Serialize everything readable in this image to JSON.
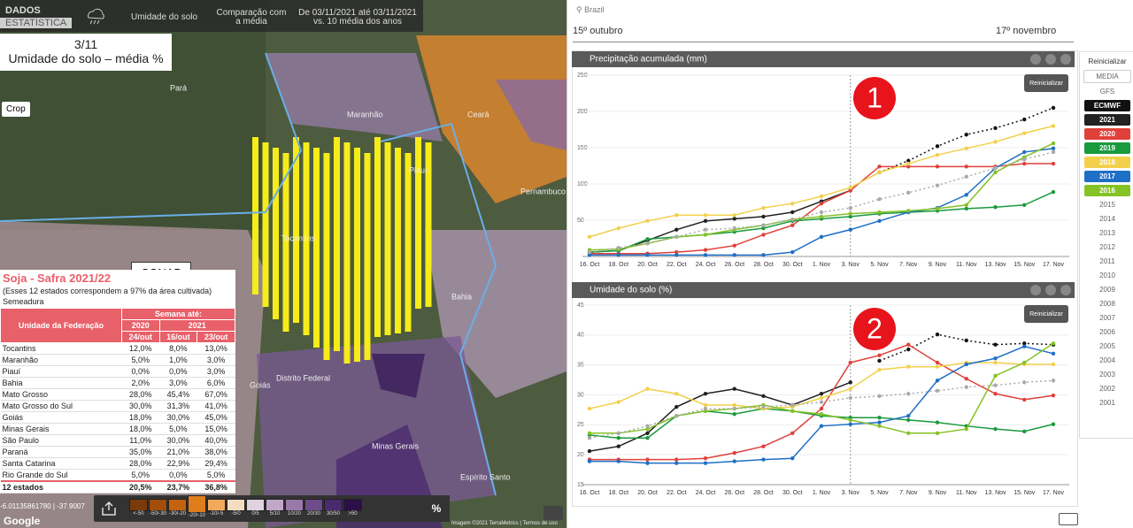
{
  "header": {
    "brand_top": "DADOS",
    "brand_bottom": "ESTATÍSTICA",
    "layer": "Umidade do solo",
    "mode": "Comparação com a média",
    "period": "De 03/11/2021 até 03/11/2021 vs. 10 média dos anos"
  },
  "map": {
    "date": "3/11",
    "subtitle": "Umidade do solo – média %",
    "crop": "Crop",
    "source": "CONAB",
    "labels": [
      "Pará",
      "Maranhão",
      "Ceará",
      "Piauí",
      "Pernambuco",
      "Tocantins",
      "Bahia",
      "Goiás",
      "Distrito Federal",
      "Minas Gerais",
      "Espírito Santo"
    ],
    "coords": "-6.01135861780 | -37.9007",
    "google": "Google",
    "attribution": "Imagem ©2021 TerraMetrics | Termos de uso"
  },
  "legend": {
    "bins": [
      {
        "label": "<-50",
        "color": "#7a3a0a"
      },
      {
        "label": "-50/-30",
        "color": "#a24d0a"
      },
      {
        "label": "-30/-20",
        "color": "#c4620e"
      },
      {
        "label": "-20/-10",
        "color": "#df7d1c"
      },
      {
        "label": "-10/-5",
        "color": "#f2a95c"
      },
      {
        "label": "-5/0",
        "color": "#f3dcc0"
      },
      {
        "label": "0/5",
        "color": "#e0d2de"
      },
      {
        "label": "5/10",
        "color": "#c2a8c8"
      },
      {
        "label": "10/20",
        "color": "#9a78aa"
      },
      {
        "label": "20/30",
        "color": "#6e4b8a"
      },
      {
        "label": "30/50",
        "color": "#4a2a6e"
      },
      {
        "label": ">50",
        "color": "#2b0f48"
      }
    ],
    "selected": 3,
    "unit": "%"
  },
  "table": {
    "title": "Soja - Safra 2021/22",
    "note": "(Esses 12 estados correspondem a 97% da área cultivada)",
    "section": "Semeadura",
    "head": {
      "state": "Unidade da Federação",
      "week": "Semana até:",
      "y2020": "2020",
      "y2021": "2021",
      "d1": "24/out",
      "d2": "16/out",
      "d3": "23/out"
    },
    "rows": [
      [
        "Tocantins",
        "12,0%",
        "8,0%",
        "13,0%"
      ],
      [
        "Maranhão",
        "5,0%",
        "1,0%",
        "3,0%"
      ],
      [
        "Piauí",
        "0,0%",
        "0,0%",
        "3,0%"
      ],
      [
        "Bahia",
        "2,0%",
        "3,0%",
        "6,0%"
      ],
      [
        "Mato Grosso",
        "28,0%",
        "45,4%",
        "67,0%"
      ],
      [
        "Mato Grosso do Sul",
        "30,0%",
        "31,3%",
        "41,0%"
      ],
      [
        "Goiás",
        "18,0%",
        "30,0%",
        "45,0%"
      ],
      [
        "Minas Gerais",
        "18,0%",
        "5,0%",
        "15,0%"
      ],
      [
        "São Paulo",
        "11,0%",
        "30,0%",
        "40,0%"
      ],
      [
        "Paraná",
        "35,0%",
        "21,0%",
        "38,0%"
      ],
      [
        "Santa Catarina",
        "28,0%",
        "22,9%",
        "29,4%"
      ],
      [
        "Rio Grande do Sul",
        "5,0%",
        "0,0%",
        "5,0%"
      ]
    ],
    "total": [
      "12 estados",
      "20,5%",
      "23,7%",
      "36,8%"
    ]
  },
  "location": "Brazil",
  "range": {
    "start": "15º outubro",
    "end": "17º novembro"
  },
  "sidebar": {
    "reset": "Reinicializar",
    "gfs": "GFS",
    "years": [
      "2015",
      "2014",
      "2013",
      "2012",
      "2011",
      "2010",
      "2009",
      "2008",
      "2007",
      "2006",
      "2005",
      "2004",
      "2003",
      "2002",
      "2001"
    ]
  },
  "chart_data": [
    {
      "type": "line",
      "title": "Precipitação acumulada (mm)",
      "button": "Reinicializar",
      "annotation": "1",
      "categories": [
        "16. Oct",
        "18. Oct",
        "20. Oct",
        "22. Oct",
        "24. Oct",
        "26. Oct",
        "28. Oct",
        "30. Oct",
        "1. Nov",
        "3. Nov",
        "5. Nov",
        "7. Nov",
        "9. Nov",
        "11. Nov",
        "13. Nov",
        "15. Nov",
        "17. Nov"
      ],
      "ylim": [
        0,
        250
      ],
      "yticks": [
        50,
        100,
        150,
        200,
        250
      ],
      "grid": true,
      "series": [
        {
          "name": "ECMWF",
          "color": "#111111",
          "style": "dotted",
          "values": [
            null,
            null,
            null,
            null,
            null,
            null,
            null,
            null,
            null,
            null,
            116,
            132,
            152,
            168,
            177,
            189,
            205
          ]
        },
        {
          "name": "2021",
          "color": "#222222",
          "values": [
            6,
            8,
            22,
            37,
            49,
            52,
            55,
            61,
            76,
            91,
            null,
            null,
            null,
            null,
            null,
            null,
            null
          ]
        },
        {
          "name": "2020",
          "color": "#e0413a",
          "values": [
            4,
            4,
            4,
            6,
            9,
            15,
            30,
            43,
            73,
            91,
            124,
            124,
            124,
            124,
            124,
            128,
            128
          ]
        },
        {
          "name": "2019",
          "color": "#1a9a3e",
          "values": [
            6,
            8,
            24,
            27,
            30,
            34,
            39,
            49,
            52,
            55,
            59,
            61,
            63,
            66,
            68,
            71,
            89
          ]
        },
        {
          "name": "2018",
          "color": "#f2d04b",
          "values": [
            27,
            39,
            49,
            57,
            57,
            57,
            67,
            73,
            83,
            95,
            116,
            128,
            140,
            149,
            158,
            170,
            180
          ]
        },
        {
          "name": "2017",
          "color": "#1f6fc6",
          "values": [
            2,
            2,
            2,
            2,
            2,
            2,
            2,
            6,
            27,
            37,
            49,
            61,
            67,
            85,
            122,
            144,
            149
          ]
        },
        {
          "name": "2016",
          "color": "#84c225",
          "values": [
            9,
            10,
            18,
            27,
            30,
            37,
            43,
            51,
            55,
            59,
            61,
            63,
            66,
            71,
            116,
            137,
            156
          ]
        },
        {
          "name": "MEDIA",
          "color": "#aaaaaa",
          "style": "dotted",
          "values": [
            6,
            12,
            18,
            27,
            37,
            39,
            43,
            51,
            61,
            67,
            79,
            88,
            98,
            110,
            122,
            134,
            144
          ]
        }
      ]
    },
    {
      "type": "line",
      "title": "Umidade do solo (%)",
      "button": "Reinicializar",
      "annotation": "2",
      "categories": [
        "16. Oct",
        "18. Oct",
        "20. Oct",
        "22. Oct",
        "24. Oct",
        "26. Oct",
        "28. Oct",
        "30. Oct",
        "1. Nov",
        "3. Nov",
        "5. Nov",
        "7. Nov",
        "9. Nov",
        "11. Nov",
        "13. Nov",
        "15. Nov",
        "17. Nov"
      ],
      "ylim": [
        15,
        45
      ],
      "yticks": [
        15,
        20,
        25,
        30,
        35,
        40,
        45
      ],
      "grid": true,
      "series": [
        {
          "name": "ECMWF",
          "color": "#111111",
          "style": "dotted",
          "values": [
            null,
            null,
            null,
            null,
            null,
            null,
            null,
            null,
            null,
            null,
            35.7,
            37.6,
            40.1,
            39.1,
            38.4,
            38.6,
            38.4
          ]
        },
        {
          "name": "2021",
          "color": "#222222",
          "values": [
            20.6,
            21.4,
            23.6,
            28,
            30.2,
            31,
            29.8,
            28.3,
            30.2,
            32.1,
            null,
            null,
            null,
            null,
            null,
            null,
            null
          ]
        },
        {
          "name": "2020",
          "color": "#e0413a",
          "values": [
            19.2,
            19.2,
            19.2,
            19.2,
            19.4,
            20.3,
            21.4,
            23.6,
            27.7,
            35.4,
            36.6,
            38.4,
            35.4,
            32.7,
            30.2,
            29.2,
            29.9
          ]
        },
        {
          "name": "2019",
          "color": "#1a9a3e",
          "values": [
            23.3,
            22.8,
            22.8,
            26.5,
            27.3,
            26.8,
            27.7,
            27.3,
            26.5,
            26.2,
            26.2,
            25.8,
            25.4,
            24.8,
            24.3,
            23.9,
            25.1
          ]
        },
        {
          "name": "2018",
          "color": "#f2d04b",
          "values": [
            27.7,
            28.8,
            31,
            30.2,
            28.3,
            28.3,
            27.7,
            28,
            29.5,
            31,
            34.2,
            34.7,
            34.7,
            35.4,
            35.4,
            35.1,
            35.1
          ]
        },
        {
          "name": "2017",
          "color": "#1f6fc6",
          "values": [
            18.9,
            18.9,
            18.6,
            18.6,
            18.6,
            18.9,
            19.2,
            19.4,
            24.8,
            25.1,
            25.4,
            26.5,
            32.4,
            35.1,
            36.1,
            38.1,
            36.9
          ]
        },
        {
          "name": "2016",
          "color": "#84c225",
          "values": [
            23.6,
            23.6,
            24.3,
            26.5,
            27.3,
            27.7,
            28.3,
            27.3,
            26.8,
            25.8,
            24.8,
            23.6,
            23.6,
            24.3,
            33.2,
            35.4,
            38.6
          ]
        },
        {
          "name": "MEDIA",
          "color": "#aaaaaa",
          "style": "dotted",
          "values": [
            22.8,
            23.6,
            24.8,
            26.5,
            27.7,
            27.7,
            28,
            28.3,
            28.8,
            29.5,
            29.8,
            30.2,
            30.7,
            31.3,
            31.6,
            32.1,
            32.4
          ]
        }
      ]
    }
  ]
}
